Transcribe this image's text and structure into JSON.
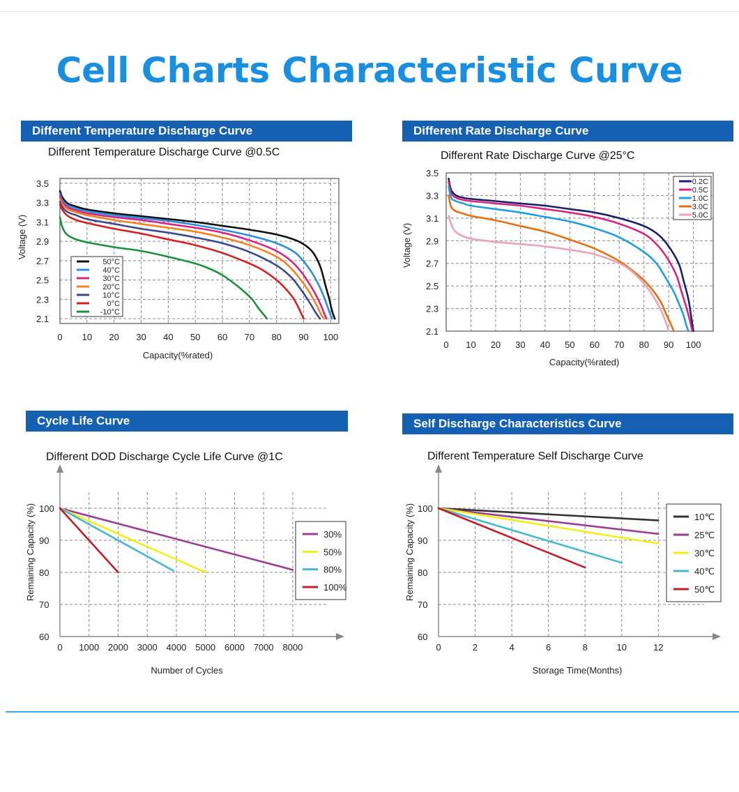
{
  "page": {
    "title": "Cell Charts Characteristic Curve"
  },
  "panels": [
    {
      "banner": "Different Temperature Discharge Curve"
    },
    {
      "banner": "Different Rate Discharge Curve"
    },
    {
      "banner": "Cycle Life Curve"
    },
    {
      "banner": "Self Discharge Characteristics Curve"
    }
  ],
  "chart_data": [
    {
      "type": "line",
      "title": "Different Temperature Discharge Curve @0.5C",
      "xlabel": "Capacity(%rated)",
      "ylabel": "Voltage (V)",
      "xlim": [
        0,
        103
      ],
      "ylim": [
        2.05,
        3.55
      ],
      "xticks": [
        0,
        10,
        20,
        30,
        40,
        50,
        60,
        70,
        80,
        90,
        100
      ],
      "yticks": [
        2.1,
        2.3,
        2.5,
        2.7,
        2.9,
        3.1,
        3.3,
        3.5
      ],
      "xtick_labels": [
        "0",
        "10",
        "20",
        "30",
        "40",
        "50",
        "60",
        "70",
        "80",
        "90",
        "100"
      ],
      "ytick_labels": [
        "2.1",
        "2.3",
        "2.5",
        "2.7",
        "2.9",
        "3.1",
        "3.3",
        "3.5"
      ],
      "grid": true,
      "legend": "left",
      "series": [
        {
          "name": "50°C",
          "color": "#111111",
          "x": [
            0,
            1,
            3,
            6,
            10,
            20,
            30,
            40,
            50,
            60,
            70,
            80,
            88,
            93,
            96,
            98,
            99.5,
            100.5,
            101.5
          ],
          "y": [
            3.42,
            3.35,
            3.29,
            3.26,
            3.23,
            3.19,
            3.16,
            3.13,
            3.1,
            3.06,
            3.02,
            2.97,
            2.9,
            2.8,
            2.65,
            2.45,
            2.3,
            2.18,
            2.1
          ]
        },
        {
          "name": "40°C",
          "color": "#2f8de0",
          "x": [
            0,
            1,
            3,
            6,
            10,
            20,
            30,
            40,
            50,
            60,
            70,
            80,
            87,
            92,
            95,
            97,
            98.5,
            99.5,
            100.5
          ],
          "y": [
            3.39,
            3.32,
            3.27,
            3.24,
            3.21,
            3.17,
            3.14,
            3.11,
            3.07,
            3.02,
            2.96,
            2.88,
            2.78,
            2.62,
            2.48,
            2.36,
            2.25,
            2.17,
            2.1
          ]
        },
        {
          "name": "30°C",
          "color": "#d6267f",
          "x": [
            0,
            1,
            3,
            6,
            10,
            20,
            30,
            40,
            50,
            60,
            70,
            80,
            86,
            90,
            93,
            95,
            96.5,
            97.5,
            98.5
          ],
          "y": [
            3.37,
            3.3,
            3.25,
            3.22,
            3.19,
            3.15,
            3.12,
            3.08,
            3.04,
            2.99,
            2.91,
            2.8,
            2.68,
            2.55,
            2.42,
            2.32,
            2.23,
            2.16,
            2.1
          ]
        },
        {
          "name": "20°C",
          "color": "#f08422",
          "x": [
            0,
            1,
            3,
            6,
            10,
            20,
            30,
            40,
            50,
            60,
            70,
            80,
            85,
            89,
            92,
            94,
            95.5,
            96.5,
            97.5
          ],
          "y": [
            3.34,
            3.28,
            3.23,
            3.2,
            3.17,
            3.12,
            3.08,
            3.04,
            3.0,
            2.94,
            2.86,
            2.74,
            2.63,
            2.5,
            2.38,
            2.28,
            2.2,
            2.14,
            2.1
          ]
        },
        {
          "name": "10°C",
          "color": "#3a4a8c",
          "x": [
            0,
            1,
            3,
            6,
            10,
            20,
            30,
            40,
            50,
            60,
            70,
            80,
            85,
            88,
            91,
            93,
            94.5,
            95.5,
            96
          ],
          "y": [
            3.31,
            3.25,
            3.2,
            3.17,
            3.13,
            3.08,
            3.03,
            2.99,
            2.94,
            2.88,
            2.79,
            2.65,
            2.54,
            2.44,
            2.32,
            2.23,
            2.16,
            2.12,
            2.1
          ]
        },
        {
          "name": "0°C",
          "color": "#d42020",
          "x": [
            0,
            1,
            3,
            6,
            10,
            20,
            30,
            40,
            50,
            60,
            70,
            75,
            80,
            83,
            86,
            88,
            89,
            90
          ],
          "y": [
            3.28,
            3.22,
            3.16,
            3.12,
            3.09,
            3.03,
            2.98,
            2.92,
            2.86,
            2.78,
            2.67,
            2.6,
            2.5,
            2.42,
            2.32,
            2.22,
            2.16,
            2.1
          ]
        },
        {
          "name": "-10°C",
          "color": "#1e8f3a",
          "x": [
            0,
            0.5,
            1.5,
            3,
            6,
            10,
            20,
            30,
            40,
            50,
            55,
            60,
            65,
            68,
            71,
            73,
            75,
            76.5
          ],
          "y": [
            3.15,
            3.08,
            3.01,
            2.96,
            2.92,
            2.89,
            2.84,
            2.8,
            2.74,
            2.67,
            2.62,
            2.55,
            2.45,
            2.38,
            2.3,
            2.22,
            2.15,
            2.1
          ]
        }
      ]
    },
    {
      "type": "line",
      "title": "Different Rate Discharge Curve @25°C",
      "xlabel": "Capacity(%rated)",
      "ylabel": "Voltage (V)",
      "xlim": [
        0,
        108
      ],
      "ylim": [
        2.1,
        3.5
      ],
      "xticks": [
        0,
        10,
        20,
        30,
        40,
        50,
        60,
        70,
        80,
        90,
        100
      ],
      "yticks": [
        2.1,
        2.3,
        2.5,
        2.7,
        2.9,
        3.1,
        3.3,
        3.5
      ],
      "xtick_labels": [
        "0",
        "10",
        "20",
        "30",
        "40",
        "50",
        "60",
        "70",
        "80",
        "90",
        "100"
      ],
      "ytick_labels": [
        "2.1",
        "2.3",
        "2.5",
        "2.7",
        "2.9",
        "3.1",
        "3.3",
        "3.5"
      ],
      "grid": true,
      "legend": "top-right",
      "series": [
        {
          "name": "0.2C",
          "color": "#1b1f6e",
          "x": [
            1,
            2,
            4,
            7,
            10,
            20,
            30,
            40,
            50,
            60,
            70,
            80,
            86,
            90,
            94,
            96,
            98,
            99,
            100
          ],
          "y": [
            3.45,
            3.35,
            3.3,
            3.28,
            3.27,
            3.25,
            3.23,
            3.21,
            3.18,
            3.15,
            3.1,
            3.03,
            2.95,
            2.85,
            2.7,
            2.55,
            2.38,
            2.24,
            2.1
          ]
        },
        {
          "name": "0.5C",
          "color": "#d6267f",
          "x": [
            1,
            2,
            4,
            7,
            10,
            20,
            30,
            40,
            50,
            60,
            70,
            80,
            85,
            89,
            93,
            95,
            97,
            98.5,
            99.5
          ],
          "y": [
            3.42,
            3.32,
            3.28,
            3.26,
            3.25,
            3.23,
            3.21,
            3.18,
            3.15,
            3.11,
            3.05,
            2.96,
            2.87,
            2.76,
            2.6,
            2.46,
            2.32,
            2.2,
            2.1
          ]
        },
        {
          "name": "1.0C",
          "color": "#1f9ee0",
          "x": [
            1,
            2,
            4,
            7,
            10,
            20,
            30,
            40,
            50,
            60,
            70,
            80,
            85,
            88,
            92,
            94,
            96,
            97,
            98
          ],
          "y": [
            3.38,
            3.28,
            3.25,
            3.23,
            3.21,
            3.18,
            3.15,
            3.11,
            3.07,
            3.01,
            2.93,
            2.8,
            2.7,
            2.6,
            2.45,
            2.35,
            2.24,
            2.16,
            2.1
          ]
        },
        {
          "name": "3.0C",
          "color": "#e66f12",
          "x": [
            1,
            2,
            4,
            7,
            10,
            20,
            30,
            40,
            50,
            60,
            70,
            75,
            80,
            84,
            87,
            89,
            90.5,
            91.5,
            92
          ],
          "y": [
            3.3,
            3.2,
            3.16,
            3.14,
            3.12,
            3.08,
            3.03,
            2.98,
            2.91,
            2.83,
            2.72,
            2.64,
            2.55,
            2.45,
            2.35,
            2.25,
            2.18,
            2.13,
            2.1
          ]
        },
        {
          "name": "5.0C",
          "color": "#eaa4b4",
          "x": [
            1,
            2,
            3,
            5,
            8,
            12,
            20,
            30,
            40,
            50,
            60,
            70,
            75,
            80,
            84,
            87,
            89,
            90
          ],
          "y": [
            3.12,
            3.05,
            3.0,
            2.96,
            2.93,
            2.91,
            2.89,
            2.87,
            2.85,
            2.82,
            2.78,
            2.7,
            2.63,
            2.52,
            2.4,
            2.28,
            2.17,
            2.1
          ]
        }
      ]
    },
    {
      "type": "line",
      "title": "Different DOD Discharge Cycle Life Curve @1C",
      "xlabel": "Number of Cycles",
      "ylabel": "Remaining Capacity (%)",
      "xlim": [
        0,
        9200
      ],
      "ylim": [
        60,
        105
      ],
      "xticks": [
        0,
        1000,
        2000,
        3000,
        4000,
        5000,
        6000,
        7000,
        8000
      ],
      "yticks": [
        60,
        70,
        80,
        90,
        100
      ],
      "xtick_labels": [
        "0",
        "1000",
        "2000",
        "3000",
        "4000",
        "5000",
        "6000",
        "7000",
        "8000"
      ],
      "ytick_labels": [
        "60",
        "70",
        "80",
        "90",
        "100"
      ],
      "grid": true,
      "legend": "right",
      "series": [
        {
          "name": "30%",
          "color": "#9b3d92",
          "x": [
            0,
            8000
          ],
          "y": [
            100,
            80.8
          ]
        },
        {
          "name": "50%",
          "color": "#f2ee1a",
          "x": [
            0,
            5000
          ],
          "y": [
            100,
            80
          ]
        },
        {
          "name": "80%",
          "color": "#48b8cf",
          "x": [
            0,
            3900
          ],
          "y": [
            100,
            80.5
          ]
        },
        {
          "name": "100%",
          "color": "#c21e28",
          "x": [
            0,
            2000
          ],
          "y": [
            100,
            80
          ]
        }
      ]
    },
    {
      "type": "line",
      "title": "Different Temperature Self Discharge Curve",
      "xlabel": "Storage Time(Months)",
      "ylabel": "Remaining Capacity (%)",
      "xlim": [
        0,
        14.5
      ],
      "ylim": [
        60,
        105
      ],
      "xticks": [
        0,
        2,
        4,
        6,
        8,
        10,
        12
      ],
      "yticks": [
        60,
        70,
        80,
        90,
        100
      ],
      "xtick_labels": [
        "0",
        "2",
        "4",
        "6",
        "8",
        "10",
        "12"
      ],
      "ytick_labels": [
        "60",
        "70",
        "80",
        "90",
        "100"
      ],
      "grid": true,
      "legend": "right",
      "series": [
        {
          "name": "10℃",
          "color": "#333333",
          "x": [
            0,
            12
          ],
          "y": [
            100,
            96.2
          ]
        },
        {
          "name": "25℃",
          "color": "#9b3d92",
          "x": [
            0,
            12
          ],
          "y": [
            100,
            92
          ]
        },
        {
          "name": "30℃",
          "color": "#f2ee1a",
          "x": [
            0,
            12
          ],
          "y": [
            100,
            89
          ]
        },
        {
          "name": "40℃",
          "color": "#48b8cf",
          "x": [
            0,
            10
          ],
          "y": [
            100,
            83
          ]
        },
        {
          "name": "50℃",
          "color": "#c21e28",
          "x": [
            0,
            8
          ],
          "y": [
            100,
            81.5
          ]
        }
      ]
    }
  ]
}
